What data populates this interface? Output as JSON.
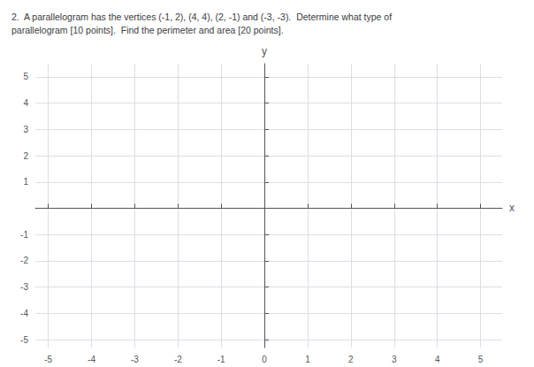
{
  "chart_data": {
    "type": "scatter",
    "title": "2.  A parallelogram has the vertices (-1, 2), (4, 4), (2, -1) and (-3, -3).  Determine what type of\nparallelogram [10 points].  Find the perimeter and area [20 points].",
    "xlabel": "x",
    "ylabel": "y",
    "xlim": [
      -5.3,
      5.5
    ],
    "ylim": [
      -5.3,
      5.5
    ],
    "xticks": [
      -5,
      -4,
      -3,
      -2,
      -1,
      0,
      1,
      2,
      3,
      4,
      5
    ],
    "yticks": [
      -5,
      -4,
      -3,
      -2,
      -1,
      1,
      2,
      3,
      4,
      5
    ],
    "grid": true
  }
}
